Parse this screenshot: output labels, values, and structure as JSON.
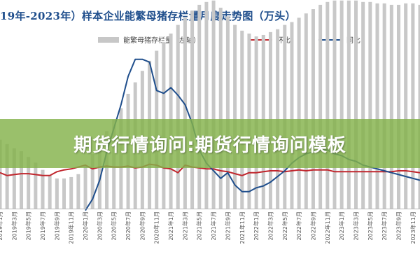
{
  "banner": {
    "text": "期货行情询问:期货行情询问模板"
  },
  "chart_data": {
    "type": "bar",
    "title": "19年-2023年）样本企业能繁母猪存栏量月度走势图（万头）",
    "categories": [
      "2019年1月",
      "2019年2月",
      "2019年3月",
      "2019年4月",
      "2019年5月",
      "2019年6月",
      "2019年7月",
      "2019年8月",
      "2019年9月",
      "2019年10月",
      "2019年11月",
      "2019年12月",
      "2020年1月",
      "2020年2月",
      "2020年3月",
      "2020年4月",
      "2020年5月",
      "2020年6月",
      "2020年7月",
      "2020年8月",
      "2020年9月",
      "2020年10月",
      "2020年11月",
      "2020年12月",
      "2021年1月",
      "2021年2月",
      "2021年3月",
      "2021年4月",
      "2021年5月",
      "2021年6月",
      "2021年7月",
      "2021年8月",
      "2021年9月",
      "2021年10月",
      "2021年11月",
      "2021年12月",
      "2022年1月",
      "2022年2月",
      "2022年3月",
      "2022年4月",
      "2022年5月",
      "2022年6月",
      "2022年7月",
      "2022年8月",
      "2022年9月",
      "2022年10月",
      "2022年11月",
      "2022年12月",
      "2023年1月",
      "2023年2月",
      "2023年3月",
      "2023年4月",
      "2023年5月",
      "2023年6月",
      "2023年7月",
      "2023年8月",
      "2023年9月",
      "2023年10月",
      "2023年11月",
      "2023年12月"
    ],
    "tick_labels": [
      "2019年1月",
      "2019年3月",
      "2019年5月",
      "2019年7月",
      "2019年9月",
      "2019年11月",
      "2020年1月",
      "2020年3月",
      "2020年5月",
      "2020年7月",
      "2020年9月",
      "2020年11月",
      "2021年1月",
      "2021年3月",
      "2021年5月",
      "2021年7月",
      "2021年9月",
      "2021年11月",
      "2022年1月",
      "2022年3月",
      "2022年5月",
      "2022年7月",
      "2022年9月",
      "2022年11月",
      "2023年1月",
      "2023年3月",
      "2023年5月",
      "2023年7月",
      "2023年9月",
      "2023年11月"
    ],
    "series": [
      {
        "name": "能繁母猪存栏量（左轴）",
        "kind": "bar",
        "values": [
          48,
          45,
          42,
          40,
          36,
          32,
          27,
          23,
          21,
          21,
          22,
          24,
          30,
          38,
          46,
          54,
          62,
          70,
          80,
          88,
          96,
          103,
          110,
          116,
          122,
          128,
          133,
          138,
          142,
          144,
          145,
          140,
          134,
          128,
          124,
          122,
          120,
          121,
          123,
          125,
          128,
          130,
          133,
          136,
          139,
          142,
          144,
          145,
          145,
          145,
          145,
          144,
          144,
          143,
          143,
          142,
          142,
          143,
          143,
          142
        ]
      },
      {
        "name": "环比",
        "kind": "line",
        "color": "#c0262d",
        "values": [
          -2,
          -5,
          -4,
          -3,
          -3,
          -4,
          -5,
          -5,
          -1,
          1,
          2,
          4,
          6,
          2,
          4,
          5,
          4,
          4,
          5,
          3,
          4,
          7,
          6,
          3,
          2,
          -2,
          6,
          4,
          3,
          2,
          2,
          0,
          -1,
          -3,
          -5,
          -2,
          -2,
          -1,
          0,
          0,
          -1,
          0,
          1,
          0,
          1,
          1,
          1,
          -1,
          -1,
          -1,
          -1,
          -1,
          -1,
          -1,
          -1,
          -1,
          0,
          0,
          -1,
          -2
        ]
      },
      {
        "name": "同比",
        "kind": "line",
        "color": "#1f4e8c",
        "values": [
          null,
          null,
          null,
          null,
          null,
          null,
          null,
          null,
          null,
          null,
          null,
          null,
          -42,
          -30,
          -10,
          20,
          45,
          70,
          100,
          118,
          118,
          115,
          85,
          82,
          88,
          80,
          70,
          50,
          22,
          8,
          0,
          -8,
          -2,
          -15,
          -22,
          -22,
          -18,
          -16,
          -12,
          -6,
          0,
          8,
          14,
          18,
          20,
          22,
          22,
          18,
          16,
          12,
          10,
          6,
          4,
          2,
          0,
          -2,
          -4,
          -6,
          -8,
          -10
        ]
      }
    ],
    "legend_placement": "top"
  }
}
